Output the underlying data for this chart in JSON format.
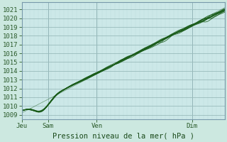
{
  "title": "",
  "xlabel": "Pression niveau de la mer( hPa )",
  "bg_color": "#cce8e0",
  "plot_bg_color": "#cce8e8",
  "grid_major_color": "#99bbbb",
  "grid_minor_color": "#bbdddd",
  "line_color": "#1a5c1a",
  "ylim": [
    1008.5,
    1021.8
  ],
  "yticks": [
    1009,
    1010,
    1011,
    1012,
    1013,
    1014,
    1015,
    1016,
    1017,
    1018,
    1019,
    1020,
    1021
  ],
  "xtick_positions": [
    0.0,
    0.13,
    0.37,
    0.84
  ],
  "xtick_labels": [
    "Jeu",
    "Sam",
    "Ven",
    "Dim"
  ],
  "tick_fontsize": 6.5,
  "xlabel_fontsize": 7.5,
  "n_points": 400,
  "n_lines": 10
}
